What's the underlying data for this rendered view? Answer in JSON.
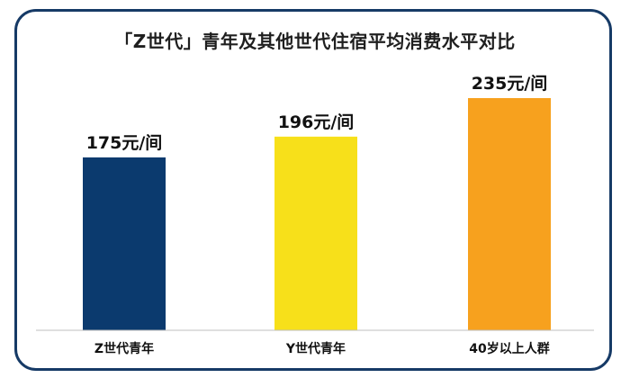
{
  "chart_data": {
    "type": "bar",
    "title": "「Z世代」青年及其他世代住宿平均消费水平对比",
    "categories": [
      "Z世代青年",
      "Y世代青年",
      "40岁以上人群"
    ],
    "values": [
      175,
      196,
      235
    ],
    "data_labels": [
      "175元/间",
      "196元/间",
      "235元/间"
    ],
    "unit": "元/间",
    "colors": [
      "#0b3a6e",
      "#f7e01a",
      "#f7a11e"
    ],
    "xlabel": "",
    "ylabel": "",
    "ylim": [
      0,
      235
    ],
    "grid": false,
    "legend": false
  },
  "colors": {
    "frame": "#163a66",
    "baseline": "#bfbfbf"
  }
}
